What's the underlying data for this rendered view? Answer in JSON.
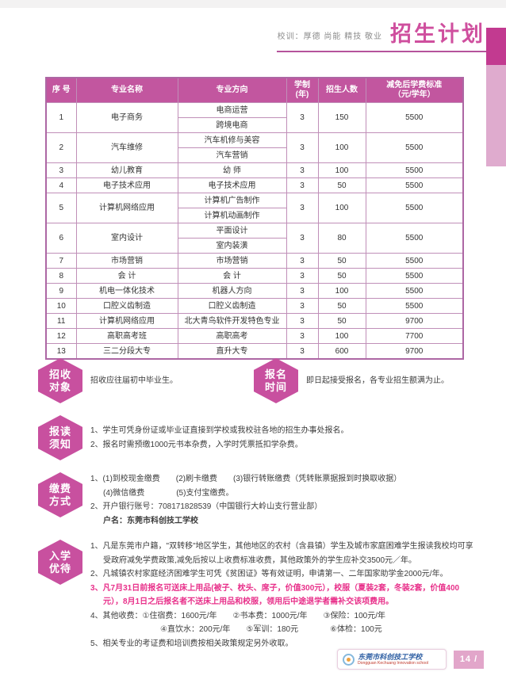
{
  "colors": {
    "primary_pink": "#c2569f",
    "title_pink": "#cf4f9e",
    "dark_corner": "#c23a90",
    "light_corner": "#dfabce",
    "highlight_text": "#e8308a",
    "table_border": "#c08fb8",
    "page_box": "#e2a6ca"
  },
  "header": {
    "motto": "校训：厚德 尚能 精技 敬业",
    "title": "招生计划"
  },
  "table": {
    "columns": [
      "序 号",
      "专业名称",
      "专业方向",
      "学制\n(年)",
      "招生人数",
      "减免后学费标准\n（元/学年）"
    ],
    "rows": [
      {
        "no": "1",
        "name": "电子商务",
        "directions": [
          "电商运营",
          "跨境电商"
        ],
        "years": "3",
        "count": "150",
        "fee": "5500"
      },
      {
        "no": "2",
        "name": "汽车维修",
        "directions": [
          "汽车机修与美容",
          "汽车营销"
        ],
        "years": "3",
        "count": "100",
        "fee": "5500"
      },
      {
        "no": "3",
        "name": "幼儿教育",
        "directions": [
          "幼 师"
        ],
        "years": "3",
        "count": "100",
        "fee": "5500"
      },
      {
        "no": "4",
        "name": "电子技术应用",
        "directions": [
          "电子技术应用"
        ],
        "years": "3",
        "count": "50",
        "fee": "5500"
      },
      {
        "no": "5",
        "name": "计算机网络应用",
        "directions": [
          "计算机广告制作",
          "计算机动画制作"
        ],
        "years": "3",
        "count": "100",
        "fee": "5500"
      },
      {
        "no": "6",
        "name": "室内设计",
        "directions": [
          "平面设计",
          "室内装潢"
        ],
        "years": "3",
        "count": "80",
        "fee": "5500"
      },
      {
        "no": "7",
        "name": "市场营销",
        "directions": [
          "市场营销"
        ],
        "years": "3",
        "count": "50",
        "fee": "5500"
      },
      {
        "no": "8",
        "name": "会 计",
        "directions": [
          "会 计"
        ],
        "years": "3",
        "count": "50",
        "fee": "5500"
      },
      {
        "no": "9",
        "name": "机电一体化技术",
        "directions": [
          "机器人方向"
        ],
        "years": "3",
        "count": "100",
        "fee": "5500"
      },
      {
        "no": "10",
        "name": "口腔义齿制造",
        "directions": [
          "口腔义齿制造"
        ],
        "years": "3",
        "count": "50",
        "fee": "5500"
      },
      {
        "no": "11",
        "name": "计算机网络应用",
        "directions": [
          "北大青鸟软件开发特色专业"
        ],
        "years": "3",
        "count": "50",
        "fee": "9700"
      },
      {
        "no": "12",
        "name": "高职高考班",
        "directions": [
          "高职高考"
        ],
        "years": "3",
        "count": "100",
        "fee": "7700"
      },
      {
        "no": "13",
        "name": "三二分段大专",
        "directions": [
          "直升大专"
        ],
        "years": "3",
        "count": "600",
        "fee": "9700"
      }
    ]
  },
  "sections": [
    {
      "badge": [
        "招收",
        "对象"
      ],
      "lines": [
        {
          "text": "招收应往届初中毕业生。",
          "style": "plain"
        }
      ]
    },
    {
      "badge": [
        "报名",
        "时间"
      ],
      "lines": [
        {
          "text": "即日起接受报名，各专业招生额满为止。",
          "style": "plain"
        }
      ]
    },
    {
      "badge": [
        "报读",
        "须知"
      ],
      "lines": [
        {
          "text": "1、学生可凭身份证或毕业证直接到学校或我校驻各地的招生办事处报名。",
          "style": "num"
        },
        {
          "text": "2、报名时需预缴1000元书本杂费，入学时凭票抵扣学杂费。",
          "style": "num"
        }
      ]
    },
    {
      "badge": [
        "缴费",
        "方式"
      ],
      "lines": [
        {
          "text": "1、(1)到校现金缴费　　(2)刷卡缴费　　(3)银行转账缴费（凭转账票据报到时换取收据）",
          "style": "num"
        },
        {
          "text": "(4)微信缴费　　　　(5)支付宝缴费。",
          "style": "indent"
        },
        {
          "text": "2、开户银行账号：708171828539（中国银行大岭山支行营业部）",
          "style": "num"
        },
        {
          "text": "户名：东莞市科创技工学校",
          "style": "bold-indent"
        }
      ]
    },
    {
      "badge": [
        "入学",
        "优待"
      ],
      "lines": [
        {
          "text": "1、凡是东莞市户籍，\"双转移\"地区学生，其他地区的农村（含县镇）学生及城市家庭困难学生报读我校均可享受政府减免学费政策,减免后按以上收费标准收费，其他政策外的学生应补交3500元／年。",
          "style": "num"
        },
        {
          "text": "2、凡城镇农村家庭经济困难学生可凭《贫困证》等有效证明，申请第一、二年国家助学金2000元/年。",
          "style": "num"
        },
        {
          "text": "3、凡7月31日前报名可送床上用品(被子、枕头、席子，价值300元），校服（夏装2套，冬装2套，价值400元），8月1日之后报名者不送床上用品和校服，领用后中途退学者需补交该项费用。",
          "style": "pink"
        },
        {
          "text": "4、其他收费：①住宿费：1600元/年　　②书本费：1000元/年　　③保险：100元/年",
          "style": "num"
        },
        {
          "text": "④直饮水：200元/年　　⑤军训：180元　　　　⑥体检：100元",
          "style": "indent-deep"
        },
        {
          "text": "5、相关专业的考证费和培训费按相关政策规定另外收取。",
          "style": "num"
        }
      ]
    }
  ],
  "footer": {
    "logo_cn": "东莞市科创技工学校",
    "logo_en": "Dongguan Kechuang Innovation school",
    "page_number": "14 /"
  }
}
